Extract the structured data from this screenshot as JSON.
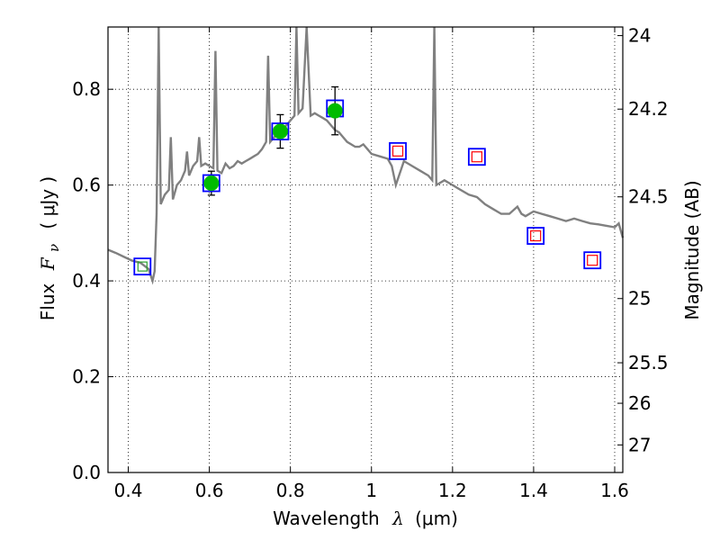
{
  "chart_data": {
    "type": "scatter",
    "title": "",
    "xlabel": "Wavelength",
    "xlabel_symbol": "λ",
    "xlabel_unit": "(μm)",
    "ylabel": "Flux",
    "ylabel_symbol": "F",
    "ylabel_subscript": "ν",
    "ylabel_unit": "( μJy )",
    "y2label": "Magnitude (AB)",
    "xlim": [
      0.35,
      1.62
    ],
    "ylim": [
      0.0,
      0.93
    ],
    "grid": true,
    "x_ticks": [
      0.4,
      0.6,
      0.8,
      1.0,
      1.2,
      1.4,
      1.6
    ],
    "x_tick_labels": [
      "0.4",
      "0.6",
      "0.8",
      "1",
      "1.2",
      "1.4",
      "1.6"
    ],
    "y_ticks": [
      0.0,
      0.2,
      0.4,
      0.6,
      0.8
    ],
    "y_tick_labels": [
      "0.0",
      "0.2",
      "0.4",
      "0.6",
      "0.8"
    ],
    "y2_ticks": [
      24,
      24.2,
      24.5,
      25,
      25.5,
      26,
      27
    ],
    "y2_tick_labels": [
      "24",
      "24.2",
      "24.5",
      "25",
      "25.5",
      "26",
      "27"
    ],
    "colors": {
      "model": "#808080",
      "observed": "#00bb00",
      "model_band_box": "#0000ff",
      "model_band_inner_green": "#2ca02c",
      "model_band_inner_red": "#ff0000",
      "errorbar": "#000000"
    },
    "model_spectrum": [
      [
        0.35,
        0.465
      ],
      [
        0.37,
        0.458
      ],
      [
        0.39,
        0.45
      ],
      [
        0.41,
        0.442
      ],
      [
        0.43,
        0.438
      ],
      [
        0.45,
        0.425
      ],
      [
        0.46,
        0.4
      ],
      [
        0.465,
        0.42
      ],
      [
        0.47,
        0.54
      ],
      [
        0.475,
        0.93
      ],
      [
        0.48,
        0.56
      ],
      [
        0.49,
        0.58
      ],
      [
        0.5,
        0.59
      ],
      [
        0.505,
        0.7
      ],
      [
        0.51,
        0.57
      ],
      [
        0.52,
        0.6
      ],
      [
        0.53,
        0.61
      ],
      [
        0.54,
        0.63
      ],
      [
        0.545,
        0.67
      ],
      [
        0.55,
        0.62
      ],
      [
        0.56,
        0.64
      ],
      [
        0.57,
        0.65
      ],
      [
        0.575,
        0.7
      ],
      [
        0.58,
        0.64
      ],
      [
        0.59,
        0.645
      ],
      [
        0.6,
        0.64
      ],
      [
        0.61,
        0.635
      ],
      [
        0.615,
        0.88
      ],
      [
        0.62,
        0.63
      ],
      [
        0.63,
        0.625
      ],
      [
        0.64,
        0.645
      ],
      [
        0.65,
        0.635
      ],
      [
        0.66,
        0.64
      ],
      [
        0.67,
        0.65
      ],
      [
        0.68,
        0.645
      ],
      [
        0.69,
        0.65
      ],
      [
        0.7,
        0.655
      ],
      [
        0.71,
        0.66
      ],
      [
        0.72,
        0.665
      ],
      [
        0.73,
        0.675
      ],
      [
        0.74,
        0.69
      ],
      [
        0.745,
        0.87
      ],
      [
        0.75,
        0.69
      ],
      [
        0.76,
        0.7
      ],
      [
        0.77,
        0.705
      ],
      [
        0.78,
        0.715
      ],
      [
        0.79,
        0.725
      ],
      [
        0.8,
        0.735
      ],
      [
        0.81,
        0.745
      ],
      [
        0.815,
        0.93
      ],
      [
        0.82,
        0.75
      ],
      [
        0.83,
        0.76
      ],
      [
        0.84,
        0.93
      ],
      [
        0.85,
        0.745
      ],
      [
        0.86,
        0.75
      ],
      [
        0.87,
        0.745
      ],
      [
        0.88,
        0.74
      ],
      [
        0.89,
        0.735
      ],
      [
        0.9,
        0.725
      ],
      [
        0.91,
        0.715
      ],
      [
        0.92,
        0.71
      ],
      [
        0.93,
        0.7
      ],
      [
        0.94,
        0.69
      ],
      [
        0.95,
        0.685
      ],
      [
        0.96,
        0.68
      ],
      [
        0.97,
        0.68
      ],
      [
        0.98,
        0.685
      ],
      [
        0.99,
        0.675
      ],
      [
        1.0,
        0.665
      ],
      [
        1.02,
        0.66
      ],
      [
        1.04,
        0.655
      ],
      [
        1.05,
        0.64
      ],
      [
        1.06,
        0.6
      ],
      [
        1.08,
        0.65
      ],
      [
        1.1,
        0.64
      ],
      [
        1.12,
        0.63
      ],
      [
        1.14,
        0.62
      ],
      [
        1.15,
        0.61
      ],
      [
        1.155,
        0.93
      ],
      [
        1.16,
        0.6
      ],
      [
        1.18,
        0.61
      ],
      [
        1.2,
        0.6
      ],
      [
        1.22,
        0.59
      ],
      [
        1.24,
        0.58
      ],
      [
        1.26,
        0.575
      ],
      [
        1.28,
        0.56
      ],
      [
        1.3,
        0.55
      ],
      [
        1.32,
        0.54
      ],
      [
        1.34,
        0.54
      ],
      [
        1.36,
        0.555
      ],
      [
        1.37,
        0.54
      ],
      [
        1.38,
        0.535
      ],
      [
        1.4,
        0.545
      ],
      [
        1.42,
        0.54
      ],
      [
        1.44,
        0.535
      ],
      [
        1.46,
        0.53
      ],
      [
        1.48,
        0.525
      ],
      [
        1.5,
        0.53
      ],
      [
        1.52,
        0.525
      ],
      [
        1.54,
        0.52
      ],
      [
        1.56,
        0.518
      ],
      [
        1.58,
        0.515
      ],
      [
        1.6,
        0.512
      ],
      [
        1.61,
        0.52
      ],
      [
        1.62,
        0.49
      ]
    ],
    "observed_points": [
      {
        "x": 0.605,
        "y": 0.604,
        "yerr": 0.025
      },
      {
        "x": 0.775,
        "y": 0.712,
        "yerr": 0.035
      },
      {
        "x": 0.91,
        "y": 0.755,
        "yerr": 0.05
      }
    ],
    "model_band_points": [
      {
        "x": 0.435,
        "y": 0.43,
        "inner": "green"
      },
      {
        "x": 0.605,
        "y": 0.604,
        "inner": "none"
      },
      {
        "x": 0.775,
        "y": 0.712,
        "inner": "none"
      },
      {
        "x": 0.91,
        "y": 0.76,
        "inner": "none"
      },
      {
        "x": 1.065,
        "y": 0.671,
        "inner": "red"
      },
      {
        "x": 1.26,
        "y": 0.659,
        "inner": "red"
      },
      {
        "x": 1.405,
        "y": 0.494,
        "inner": "red"
      },
      {
        "x": 1.545,
        "y": 0.443,
        "inner": "red"
      }
    ]
  }
}
